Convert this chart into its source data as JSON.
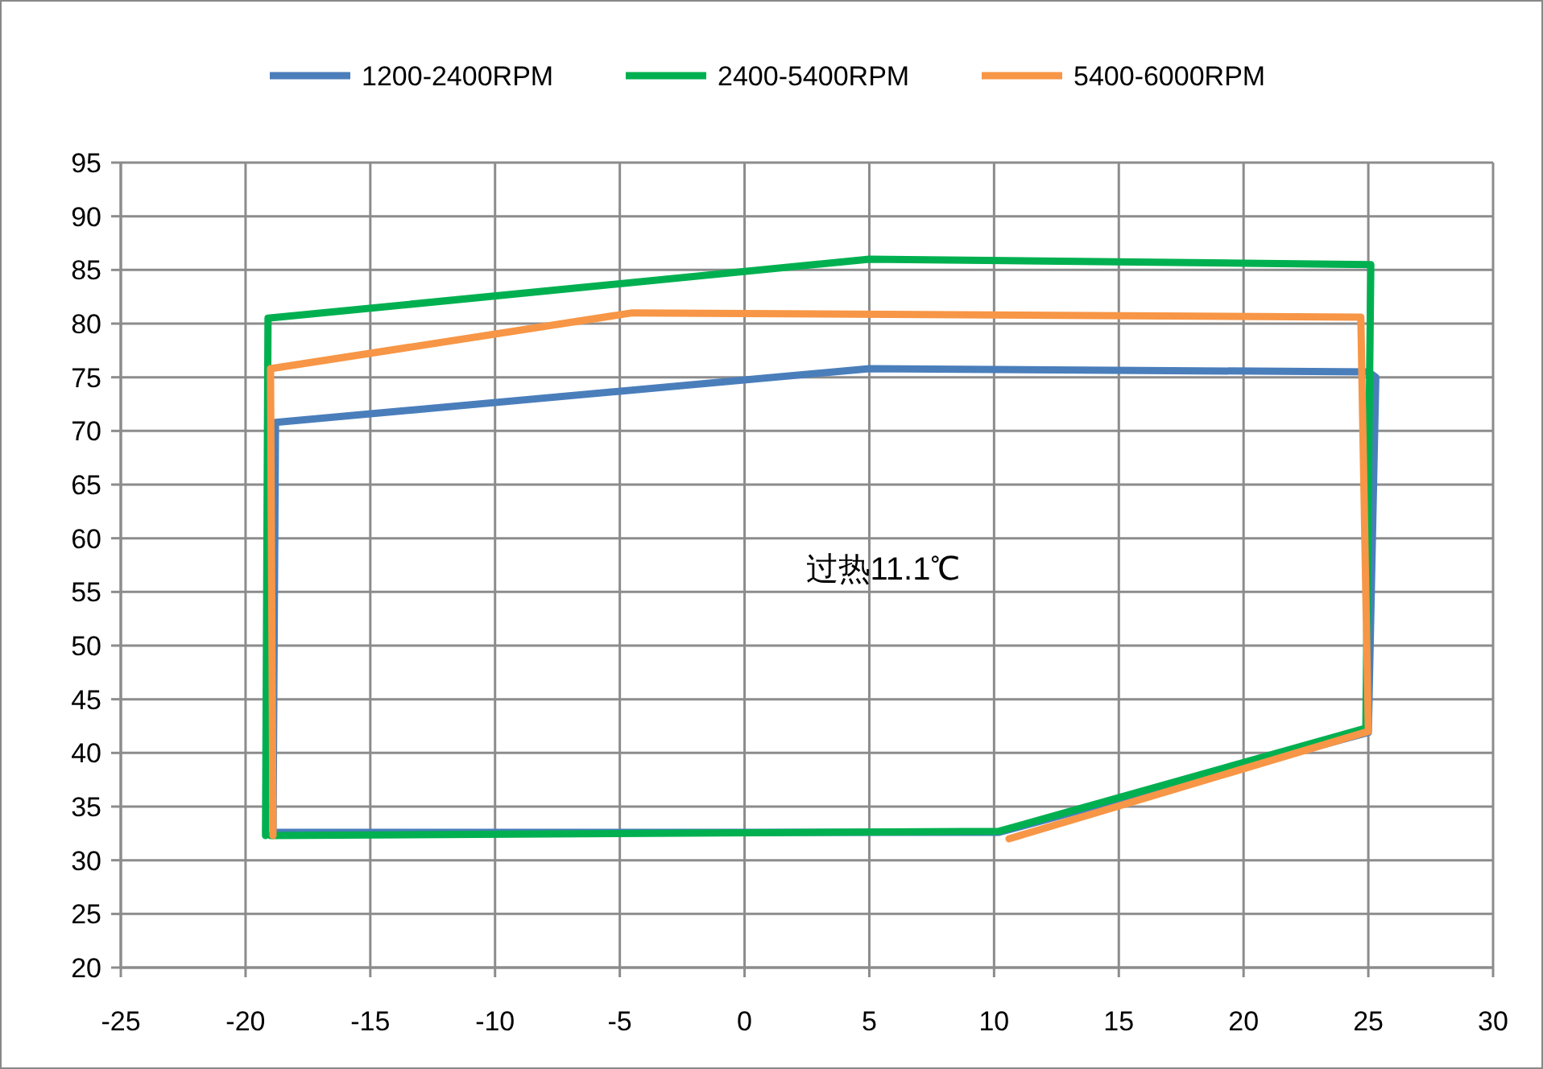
{
  "chart_data": {
    "type": "line",
    "legend": "top",
    "grid": true,
    "marker": "none",
    "line_style": "solid",
    "xlim": [
      -25,
      30
    ],
    "xticks": [
      -25,
      -20,
      -15,
      -10,
      -5,
      0,
      5,
      10,
      15,
      20,
      25,
      30
    ],
    "ylim": [
      20,
      95
    ],
    "yticks": [
      20,
      25,
      30,
      35,
      40,
      45,
      50,
      55,
      60,
      65,
      70,
      75,
      80,
      85,
      90,
      95
    ],
    "annotations": [
      "过热11.1℃"
    ],
    "series": [
      {
        "name": "1200-2400RPM",
        "color": "#4a7ebb",
        "x": [
          -18.9,
          -18.8,
          5,
          25,
          25.3,
          25,
          10.2,
          -18.7
        ],
        "values": [
          32.6,
          70.8,
          75.8,
          75.5,
          75,
          41.9,
          32.6,
          32.6
        ]
      },
      {
        "name": "2400-5400RPM",
        "color": "#00b050",
        "x": [
          -19.2,
          -19.1,
          5,
          25.1,
          24.9,
          10.2,
          -19
        ],
        "values": [
          32.3,
          80.5,
          86,
          85.5,
          42.3,
          32.7,
          32.3
        ]
      },
      {
        "name": "5400-6000RPM",
        "color": "#f79646",
        "x": [
          10.6,
          25,
          24.7,
          -4.5,
          -19,
          -18.9
        ],
        "values": [
          32,
          42,
          80.6,
          81,
          75.8,
          32.3
        ]
      }
    ]
  }
}
